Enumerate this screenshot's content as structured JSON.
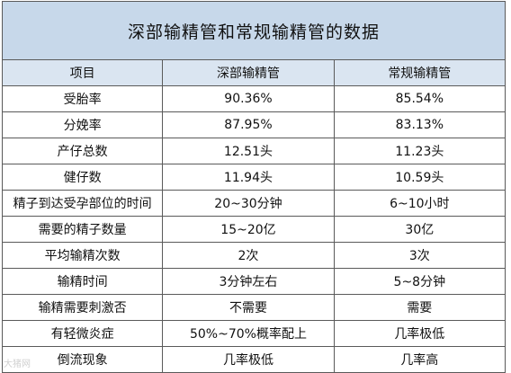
{
  "title": "深部输精管和常规输精管的数据",
  "headers": [
    "项目",
    "深部输精管",
    "常规输精管"
  ],
  "rows": [
    [
      "受胎率",
      "90.36%",
      "85.54%"
    ],
    [
      "分娩率",
      "87.95%",
      "83.13%"
    ],
    [
      "产仔总数",
      "12.51头",
      "11.23头"
    ],
    [
      "健仔数",
      "11.94头",
      "10.59头"
    ],
    [
      "精子到达受孕部位的时间",
      "20~30分钟",
      "6~10小时"
    ],
    [
      "需要的精子数量",
      "15~20亿",
      "30亿"
    ],
    [
      "平均输精次数",
      "2次",
      "3次"
    ],
    [
      "输精时间",
      "3分钟左右",
      "5~8分钟"
    ],
    [
      "输精需要刺激否",
      "不需要",
      "需要"
    ],
    [
      "有轻微炎症",
      "50%~70%概率配上",
      "几率极低"
    ],
    [
      "倒流现象",
      "几率极低",
      "几率高"
    ]
  ],
  "watermark": "大猪网"
}
